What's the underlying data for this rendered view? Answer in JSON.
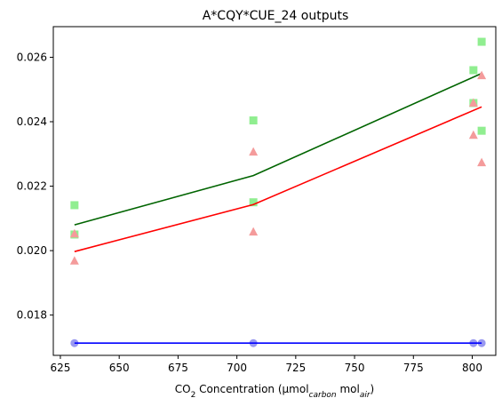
{
  "chart_data": {
    "type": "scatter",
    "title": "A*CQY*CUE_24 outputs",
    "xlabel": {
      "pre": "CO",
      "sub1": "2",
      "mid": " Concentration (µmol",
      "sub2": "carbon",
      "mid2": " mol",
      "sub3": "air",
      "post": ")"
    },
    "xlim": [
      622,
      810
    ],
    "ylim": [
      0.01675,
      0.02695
    ],
    "xticks": [
      {
        "value": 625,
        "label": "625"
      },
      {
        "value": 650,
        "label": "650"
      },
      {
        "value": 675,
        "label": "675"
      },
      {
        "value": 700,
        "label": "700"
      },
      {
        "value": 725,
        "label": "725"
      },
      {
        "value": 750,
        "label": "750"
      },
      {
        "value": 775,
        "label": "775"
      },
      {
        "value": 800,
        "label": "800"
      }
    ],
    "yticks": [
      {
        "value": 0.018,
        "label": "0.018"
      },
      {
        "value": 0.02,
        "label": "0.020"
      },
      {
        "value": 0.022,
        "label": "0.022"
      },
      {
        "value": 0.024,
        "label": "0.024"
      },
      {
        "value": 0.026,
        "label": "0.026"
      }
    ],
    "series": [
      {
        "marker": "square",
        "color": "#90ee90",
        "points": [
          {
            "x": 631,
            "y": 0.02141
          },
          {
            "x": 631,
            "y": 0.0205
          },
          {
            "x": 707,
            "y": 0.02404
          },
          {
            "x": 707,
            "y": 0.0215
          },
          {
            "x": 800.5,
            "y": 0.0256
          },
          {
            "x": 800.5,
            "y": 0.02458
          },
          {
            "x": 804,
            "y": 0.02648
          },
          {
            "x": 804,
            "y": 0.02372
          }
        ],
        "line_color": "#006400",
        "line": [
          {
            "x": 631,
            "y": 0.0208
          },
          {
            "x": 707,
            "y": 0.02233
          },
          {
            "x": 804,
            "y": 0.0255
          }
        ]
      },
      {
        "marker": "triangle",
        "color": "#f49b9b",
        "points": [
          {
            "x": 631,
            "y": 0.02052
          },
          {
            "x": 631,
            "y": 0.01968
          },
          {
            "x": 707,
            "y": 0.02306
          },
          {
            "x": 707,
            "y": 0.02058
          },
          {
            "x": 800.5,
            "y": 0.02458
          },
          {
            "x": 800.5,
            "y": 0.02358
          },
          {
            "x": 804,
            "y": 0.02543
          },
          {
            "x": 804,
            "y": 0.02273
          }
        ],
        "line_color": "#ff0000",
        "line": [
          {
            "x": 631,
            "y": 0.01997
          },
          {
            "x": 707,
            "y": 0.02143
          },
          {
            "x": 804,
            "y": 0.02446
          }
        ]
      },
      {
        "marker": "circle",
        "color": "#9999f0",
        "points": [
          {
            "x": 631,
            "y": 0.01713
          },
          {
            "x": 707,
            "y": 0.01713
          },
          {
            "x": 800.5,
            "y": 0.01713
          },
          {
            "x": 804,
            "y": 0.01713
          }
        ],
        "line_color": "#0000ff",
        "line": [
          {
            "x": 631,
            "y": 0.01713
          },
          {
            "x": 707,
            "y": 0.01713
          },
          {
            "x": 804,
            "y": 0.01713
          }
        ]
      }
    ]
  }
}
